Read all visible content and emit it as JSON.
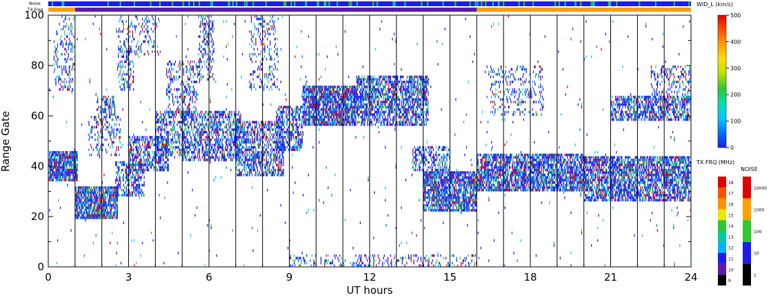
{
  "chart_data": {
    "type": "heatmap",
    "xlabel": "UT hours",
    "ylabel": "Range Gate",
    "xlim": [
      0,
      24
    ],
    "ylim": [
      0,
      100
    ],
    "x_ticks": [
      "0",
      "3",
      "6",
      "9",
      "12",
      "15",
      "18",
      "21",
      "24"
    ],
    "y_ticks": [
      "0",
      "20",
      "40",
      "60",
      "80",
      "100"
    ],
    "hour_grid_lines": true,
    "header_bars": [
      {
        "label": "Noise",
        "dominant_color": "#1c1cf0",
        "speckle_colors": [
          "#2fc82f",
          "#00c8c8"
        ]
      },
      {
        "label": "TX Freq",
        "segments": [
          {
            "from": 0,
            "to": 1,
            "color": "#f5a000"
          },
          {
            "from": 1,
            "to": 16,
            "color": "#5a1aa8"
          },
          {
            "from": 16,
            "to": 24,
            "color": "#f5a000"
          }
        ]
      }
    ],
    "colorbars": {
      "wid": {
        "title": "WID_L (km/s)",
        "range": [
          0,
          500
        ],
        "ticks": [
          "0",
          "100",
          "200",
          "300",
          "400",
          "500"
        ],
        "gradient": [
          "#1c1cf0",
          "#0070ff",
          "#00c8ff",
          "#00e0b0",
          "#2fc82f",
          "#b8e000",
          "#ffe000",
          "#ffa000",
          "#ff5000",
          "#e00000"
        ]
      },
      "tx_freq": {
        "title": "TX FRQ (MHz)",
        "ticks": [
          "9",
          "10",
          "11",
          "12",
          "13",
          "14",
          "15",
          "16",
          "17",
          "18"
        ],
        "blocks": [
          "#000000",
          "#5a1aa8",
          "#1c1cf0",
          "#00b4ff",
          "#00c8a0",
          "#2fc82f",
          "#e8e800",
          "#ff9000",
          "#ff5000",
          "#e00000"
        ]
      },
      "noise": {
        "title": "NOISE",
        "ticks": [
          "1",
          "10",
          "100",
          "1000",
          "10000"
        ],
        "blocks": [
          "#000000",
          "#1c1cf0",
          "#2fc82f",
          "#ffa000",
          "#e00000"
        ]
      }
    },
    "series": [
      {
        "ut_start": 0.0,
        "ut_end": 1.1,
        "gate_low": 34,
        "gate_high": 46,
        "density": 0.85
      },
      {
        "ut_start": 0.2,
        "ut_end": 1.0,
        "gate_low": 70,
        "gate_high": 90,
        "density": 0.25
      },
      {
        "ut_start": 0.3,
        "ut_end": 1.0,
        "gate_low": 88,
        "gate_high": 100,
        "density": 0.15
      },
      {
        "ut_start": 1.0,
        "ut_end": 2.6,
        "gate_low": 19,
        "gate_high": 32,
        "density": 0.85
      },
      {
        "ut_start": 1.5,
        "ut_end": 2.7,
        "gate_low": 44,
        "gate_high": 60,
        "density": 0.25
      },
      {
        "ut_start": 1.8,
        "ut_end": 2.5,
        "gate_low": 60,
        "gate_high": 68,
        "density": 0.4
      },
      {
        "ut_start": 2.5,
        "ut_end": 3.6,
        "gate_low": 28,
        "gate_high": 42,
        "density": 0.5
      },
      {
        "ut_start": 2.6,
        "ut_end": 3.2,
        "gate_low": 70,
        "gate_high": 86,
        "density": 0.35
      },
      {
        "ut_start": 2.6,
        "ut_end": 4.2,
        "gate_low": 84,
        "gate_high": 100,
        "density": 0.18
      },
      {
        "ut_start": 3.0,
        "ut_end": 4.5,
        "gate_low": 38,
        "gate_high": 52,
        "density": 0.55
      },
      {
        "ut_start": 4.0,
        "ut_end": 5.2,
        "gate_low": 44,
        "gate_high": 62,
        "density": 0.45
      },
      {
        "ut_start": 4.4,
        "ut_end": 5.6,
        "gate_low": 60,
        "gate_high": 82,
        "density": 0.3
      },
      {
        "ut_start": 5.0,
        "ut_end": 7.2,
        "gate_low": 42,
        "gate_high": 62,
        "density": 0.55
      },
      {
        "ut_start": 5.6,
        "ut_end": 6.2,
        "gate_low": 74,
        "gate_high": 100,
        "density": 0.3
      },
      {
        "ut_start": 7.0,
        "ut_end": 8.8,
        "gate_low": 36,
        "gate_high": 58,
        "density": 0.55
      },
      {
        "ut_start": 7.5,
        "ut_end": 8.6,
        "gate_low": 70,
        "gate_high": 100,
        "density": 0.18
      },
      {
        "ut_start": 8.5,
        "ut_end": 9.5,
        "gate_low": 46,
        "gate_high": 64,
        "density": 0.55
      },
      {
        "ut_start": 9.5,
        "ut_end": 11.5,
        "gate_low": 56,
        "gate_high": 72,
        "density": 0.8
      },
      {
        "ut_start": 11.5,
        "ut_end": 14.2,
        "gate_low": 56,
        "gate_high": 76,
        "density": 0.65
      },
      {
        "ut_start": 14.0,
        "ut_end": 16.0,
        "gate_low": 22,
        "gate_high": 38,
        "density": 0.8
      },
      {
        "ut_start": 13.6,
        "ut_end": 15.0,
        "gate_low": 38,
        "gate_high": 48,
        "density": 0.45
      },
      {
        "ut_start": 9.0,
        "ut_end": 16.0,
        "gate_low": 0,
        "gate_high": 5,
        "density": 0.22
      },
      {
        "ut_start": 16.0,
        "ut_end": 20.0,
        "gate_low": 30,
        "gate_high": 45,
        "density": 0.75
      },
      {
        "ut_start": 20.0,
        "ut_end": 24.0,
        "gate_low": 26,
        "gate_high": 44,
        "density": 0.7
      },
      {
        "ut_start": 21.0,
        "ut_end": 24.0,
        "gate_low": 58,
        "gate_high": 68,
        "density": 0.6
      },
      {
        "ut_start": 16.5,
        "ut_end": 18.5,
        "gate_low": 60,
        "gate_high": 80,
        "density": 0.2
      },
      {
        "ut_start": 22.5,
        "ut_end": 24.0,
        "gate_low": 66,
        "gate_high": 80,
        "density": 0.3
      },
      {
        "ut_start": 0.0,
        "ut_end": 24.0,
        "gate_low": 0,
        "gate_high": 100,
        "density": 0.008
      }
    ]
  }
}
